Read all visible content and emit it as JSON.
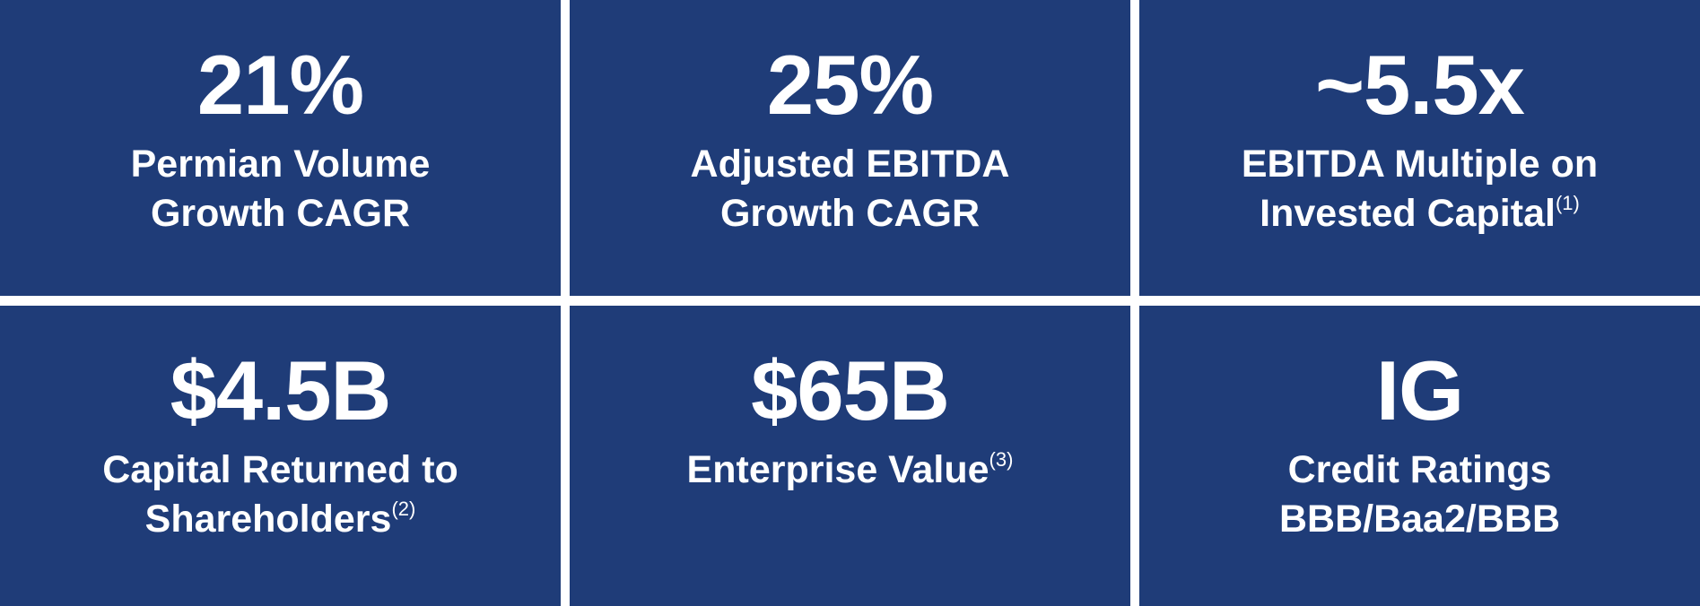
{
  "tiles": [
    {
      "value": "21%",
      "label": [
        "Permian Volume",
        "Growth CAGR"
      ]
    },
    {
      "value": "25%",
      "label": [
        "Adjusted EBITDA",
        "Growth CAGR"
      ]
    },
    {
      "value": "~5.5x",
      "label": [
        "EBITDA Multiple on",
        "Invested Capital"
      ],
      "footnote": "(1)"
    },
    {
      "value": "$4.5B",
      "label": [
        "Capital Returned to",
        "Shareholders"
      ],
      "footnote": "(2)"
    },
    {
      "value": "$65B",
      "label": [
        "Enterprise Value"
      ],
      "footnote": "(3)"
    },
    {
      "value": "IG",
      "label": [
        "Credit Ratings",
        "BBB/Baa2/BBB"
      ]
    }
  ]
}
